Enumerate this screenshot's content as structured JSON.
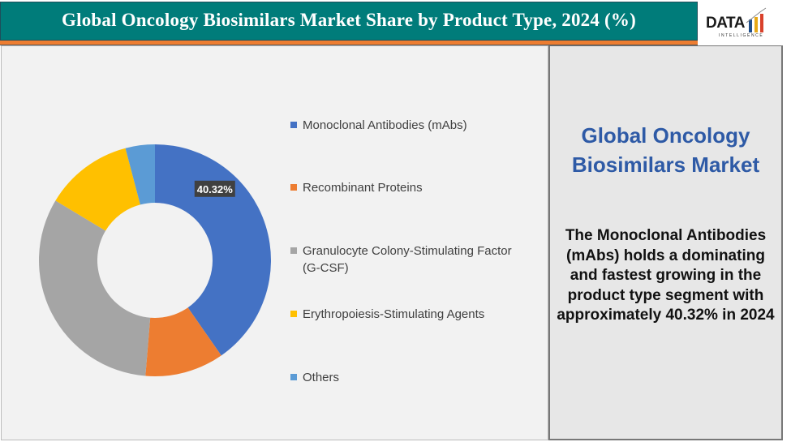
{
  "header": {
    "title": "Global Oncology Biosimilars Market Share by Product Type, 2024 (%)"
  },
  "logo": {
    "text": "DATA",
    "subtext": "INTELLIGENCE"
  },
  "right_panel": {
    "title": "Global Oncology Biosimilars Market",
    "body": "The Monoclonal Antibodies (mAbs) holds a dominating and fastest growing in the product type segment with approximately 40.32% in 2024"
  },
  "chart_data": {
    "type": "pie",
    "donut": true,
    "categories": [
      "Monoclonal Antibodies (mAbs)",
      "Recombinant Proteins",
      "Granulocyte Colony-Stimulating Factor (G-CSF)",
      "Erythropoiesis-Stimulating Agents",
      "Others"
    ],
    "values": [
      40.32,
      11.0,
      32.3,
      12.3,
      4.1
    ],
    "colors": [
      "#4472c4",
      "#ed7d31",
      "#a5a5a5",
      "#ffc000",
      "#5b9bd5"
    ],
    "data_labels": [
      "40.32%",
      "",
      "",
      "",
      ""
    ],
    "legend_position": "right"
  }
}
